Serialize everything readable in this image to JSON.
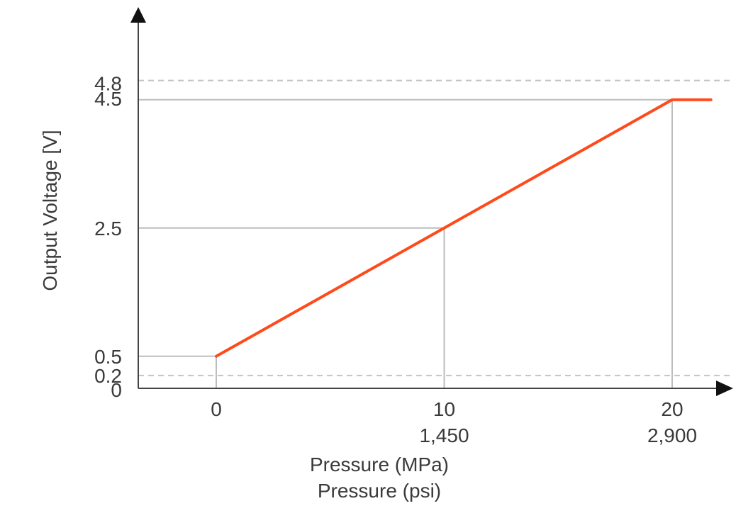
{
  "chart_data": {
    "type": "line",
    "title": "",
    "ylabel": "Output Voltage [V]",
    "xlabels": [
      "Pressure (MPa)",
      "Pressure (psi)"
    ],
    "ylim": [
      0,
      4.8
    ],
    "xlim_mpa": [
      0,
      21.7
    ],
    "y_ticks": [
      {
        "value": 0,
        "label": "0"
      },
      {
        "value": 0.2,
        "label": "0.2"
      },
      {
        "value": 0.5,
        "label": "0.5"
      },
      {
        "value": 2.5,
        "label": "2.5"
      },
      {
        "value": 4.5,
        "label": "4.5"
      },
      {
        "value": 4.8,
        "label": "4.8"
      }
    ],
    "x_ticks": [
      {
        "value": 0,
        "mpa": "0",
        "psi": ""
      },
      {
        "value": 10,
        "mpa": "10",
        "psi": "1,450"
      },
      {
        "value": 20,
        "mpa": "20",
        "psi": "2,900"
      }
    ],
    "dashed_limit_lines_y": [
      4.8,
      0.2
    ],
    "solid_reference_lines_y": [
      4.5,
      2.5,
      0.5
    ],
    "drop_lines_x": [
      0,
      10,
      20
    ],
    "series": [
      {
        "color": "#ff4a1a",
        "points": [
          {
            "x": 0,
            "y": 0.5
          },
          {
            "x": 10,
            "y": 2.5
          },
          {
            "x": 20,
            "y": 4.5
          },
          {
            "x": 21.7,
            "y": 4.5
          }
        ]
      }
    ],
    "grid": false,
    "colors": {
      "axis": "#444444",
      "reference": "#bdbdbd",
      "dashed": "#c4c4c4",
      "text": "#3a3a3a"
    }
  }
}
